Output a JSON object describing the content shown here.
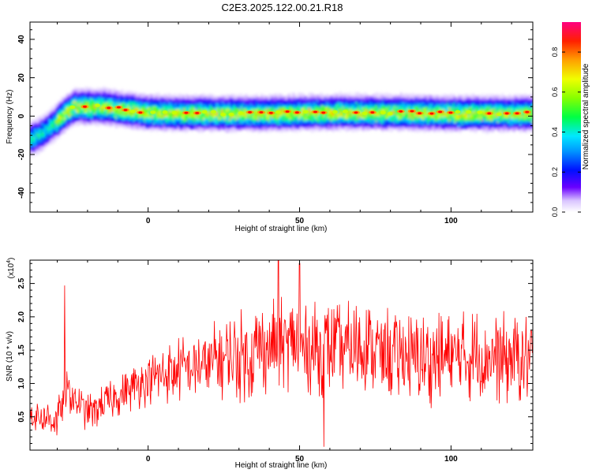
{
  "title": "C2E3.2025.122.00.21.R18",
  "chart_data": [
    {
      "type": "heatmap",
      "xlabel": "Height of straight line (km)",
      "ylabel": "Frequency (Hz)",
      "xlim": [
        -39,
        127
      ],
      "ylim": [
        -50,
        49
      ],
      "xticks": [
        "0",
        "50",
        "100"
      ],
      "yticks": [
        "40",
        "20",
        "0",
        "-20",
        "-40"
      ],
      "colorbar": {
        "label": "Normalized spectral amplitude",
        "range": [
          0.0,
          0.95
        ],
        "ticks": [
          "0.0",
          "0.2",
          "0.4",
          "0.6",
          "0.8"
        ]
      },
      "ridge": {
        "x": [
          -39,
          -35,
          -31,
          -27,
          -24,
          -20,
          -15,
          -10,
          -5,
          0,
          10,
          20,
          40,
          60,
          80,
          100,
          127
        ],
        "frequency": [
          -12,
          -9,
          -4,
          2,
          5,
          5,
          5,
          4,
          3,
          2,
          1.5,
          1.5,
          1.5,
          2,
          2,
          1.5,
          1.5
        ]
      }
    },
    {
      "type": "line",
      "xlabel": "Height of straight line (km)",
      "ylabel": "SNR (10 * v/v)",
      "y_multiplier": "(x10",
      "y_multiplier_exp": "4",
      "y_multiplier_close": ")",
      "xlim": [
        -39,
        127
      ],
      "ylim": [
        0,
        2.85
      ],
      "xticks": [
        "0",
        "50",
        "100"
      ],
      "yticks": [
        "0.5",
        "1.0",
        "1.5",
        "2.0",
        "2.5"
      ],
      "series_color": "#ff0000",
      "series": [
        {
          "x": [
            -39,
            -30,
            -27,
            -20,
            -10,
            0,
            10,
            20,
            30,
            40,
            45,
            50,
            58,
            60,
            70,
            80,
            90,
            100,
            110,
            120,
            127
          ],
          "envelope_mean": [
            0.55,
            0.45,
            0.9,
            0.55,
            0.8,
            1.05,
            1.2,
            1.3,
            1.4,
            1.55,
            1.6,
            1.55,
            1.5,
            1.5,
            1.55,
            1.45,
            1.35,
            1.35,
            1.45,
            1.35,
            1.4
          ],
          "peaks": [
            {
              "x": -27.5,
              "y": 2.47
            },
            {
              "x": 43,
              "y": 2.85
            },
            {
              "x": 50,
              "y": 2.8
            },
            {
              "x": 58,
              "y": 0.05
            }
          ]
        }
      ]
    }
  ]
}
